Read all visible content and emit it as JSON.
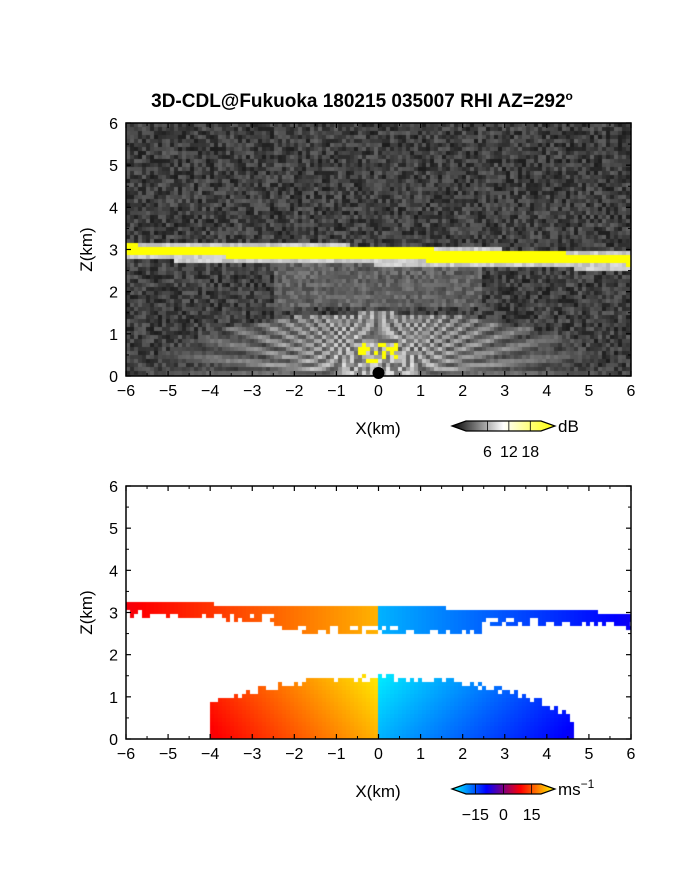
{
  "figure": {
    "title": "3D-CDL@Fukuoka 180215 035007 RHI AZ=292",
    "title_superscript": "o"
  },
  "chart_data": [
    {
      "type": "heatmap",
      "quantity": "reflectivity",
      "xlabel": "X(km)",
      "ylabel": "Z(km)",
      "xlim": [
        -6,
        6
      ],
      "ylim": [
        0,
        6
      ],
      "xticks": [
        -6,
        -5,
        -4,
        -3,
        -2,
        -1,
        0,
        1,
        2,
        3,
        4,
        5,
        6
      ],
      "yticks": [
        0,
        1,
        2,
        3,
        4,
        5,
        6
      ],
      "colorbar": {
        "unit": "dB",
        "ticks": [
          6,
          12,
          18
        ],
        "range": [
          0,
          21
        ],
        "colors": [
          "#000000",
          "#ffffff",
          "#ffff00"
        ]
      },
      "features": {
        "cloud_layer": {
          "z_base_km": 2.8,
          "z_top_km": 3.1,
          "value_db": 18
        },
        "boundary_layer_echo": {
          "z_top_km": 1.5,
          "peak_db": 16
        },
        "near_ground_echo": {
          "x_km": [
            -0.5,
            0.5
          ],
          "z_km": [
            0.3,
            0.8
          ],
          "value_db": 19
        }
      }
    },
    {
      "type": "heatmap",
      "quantity": "doppler_velocity",
      "xlabel": "X(km)",
      "ylabel": "Z(km)",
      "xlim": [
        -6,
        6
      ],
      "ylim": [
        0,
        6
      ],
      "xticks": [
        -6,
        -5,
        -4,
        -3,
        -2,
        -1,
        0,
        1,
        2,
        3,
        4,
        5,
        6
      ],
      "yticks": [
        0,
        1,
        2,
        3,
        4,
        5,
        6
      ],
      "colorbar": {
        "unit": "ms",
        "unit_superscript": "−1",
        "ticks": [
          "−15",
          "0",
          "15"
        ],
        "range": [
          -20,
          20
        ],
        "colors": [
          "#00ffff",
          "#0000ff",
          "#ff0000",
          "#ffff00"
        ]
      },
      "features": {
        "cloud_layer": {
          "x_km": [
            -6,
            6
          ],
          "z_base_km": 2.5,
          "z_top_km": 3.15,
          "velocity_left_ms": 12,
          "velocity_right_ms": -12
        },
        "boundary_layer": {
          "x_km": [
            -4,
            4.6
          ],
          "z_top_km": 1.5,
          "velocity_left_ms": 14,
          "velocity_right_ms": -14
        }
      }
    }
  ]
}
